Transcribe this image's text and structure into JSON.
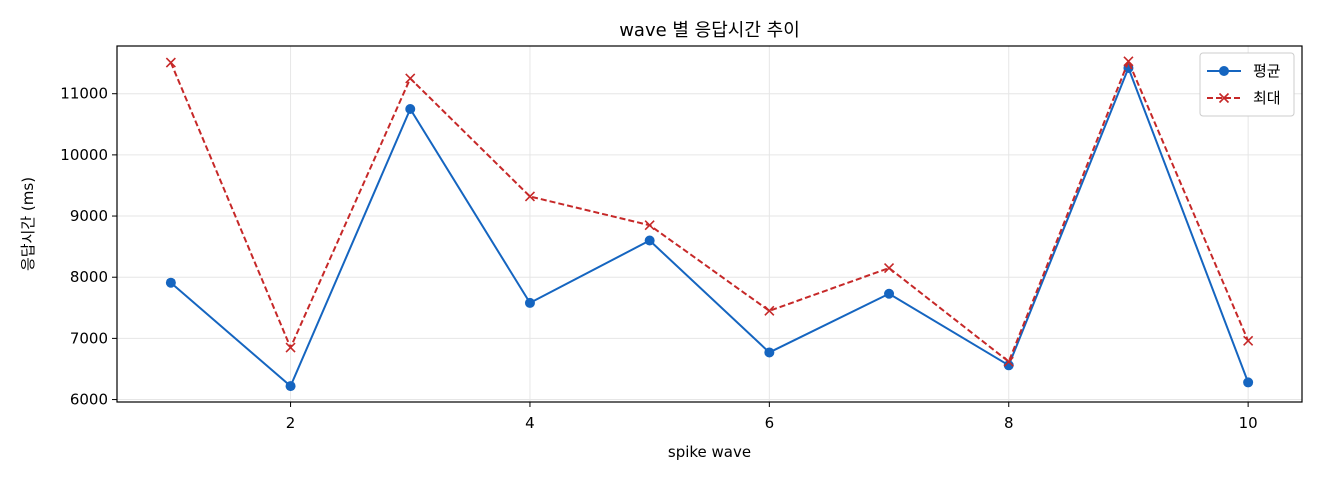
{
  "chart_data": {
    "type": "line",
    "title": "wave 별 응답시간 추이",
    "xlabel": "spike wave",
    "ylabel": "응답시간 (ms)",
    "x": [
      1,
      2,
      3,
      4,
      5,
      6,
      7,
      8,
      9,
      10
    ],
    "xlim": [
      0.55,
      10.45
    ],
    "ylim": [
      5960,
      11780
    ],
    "xticks": [
      2,
      4,
      6,
      8,
      10
    ],
    "yticks": [
      6000,
      7000,
      8000,
      9000,
      10000,
      11000
    ],
    "grid": true,
    "legend_position": "top-right",
    "series": [
      {
        "name": "평균",
        "color": "#1565c0",
        "line_style": "solid",
        "marker": "circle",
        "values": [
          7910,
          6220,
          10750,
          7580,
          8600,
          6770,
          7730,
          6560,
          11420,
          6280
        ]
      },
      {
        "name": "최대",
        "color": "#c62828",
        "line_style": "dashed",
        "marker": "x",
        "values": [
          11510,
          6850,
          11250,
          9320,
          8850,
          7450,
          8150,
          6620,
          11530,
          6960
        ]
      }
    ]
  }
}
